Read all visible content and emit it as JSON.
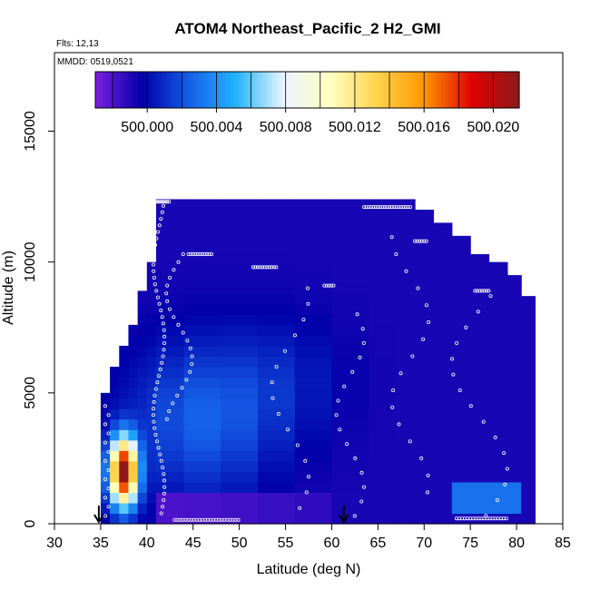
{
  "chart_data": {
    "type": "heatmap",
    "title": "ATOM4 Northeast_Pacific_2 H2_GMI",
    "annotations": [
      "Flts: 12,13",
      "MMDD: 0519,0521"
    ],
    "xlabel": "Latitude (deg N)",
    "ylabel": "Altitude (m)",
    "xlim": [
      30,
      85
    ],
    "ylim": [
      0,
      18000
    ],
    "xticks": [
      "30",
      "35",
      "40",
      "45",
      "50",
      "55",
      "60",
      "65",
      "70",
      "75",
      "80",
      "85"
    ],
    "yticks": [
      "0",
      "5000",
      "10000",
      "15000"
    ],
    "colorbar": {
      "ticks": [
        "500.000",
        "500.004",
        "500.008",
        "500.012",
        "500.016",
        "500.020"
      ],
      "tick_values": [
        500.0,
        500.004,
        500.008,
        500.012,
        500.016,
        500.02
      ],
      "range": [
        499.997,
        500.0215
      ],
      "colors": [
        "#7b1fe0",
        "#0000aa",
        "#1560e8",
        "#22b5ff",
        "#eaf4ff",
        "#ffffc0",
        "#ffd24a",
        "#ff9500",
        "#e00000",
        "#8b1a1a"
      ]
    },
    "columns": [
      {
        "lat": 35.0,
        "top": 5000
      },
      {
        "lat": 36.0,
        "top": 6000
      },
      {
        "lat": 37.0,
        "top": 6800
      },
      {
        "lat": 38.0,
        "top": 7600
      },
      {
        "lat": 39.0,
        "top": 8900
      },
      {
        "lat": 40.0,
        "top": 10000
      },
      {
        "lat": 41.0,
        "top": 12400
      },
      {
        "lat": 44.0,
        "top": 12400
      },
      {
        "lat": 48.0,
        "top": 12400
      },
      {
        "lat": 52.0,
        "top": 12400
      },
      {
        "lat": 56.0,
        "top": 12400
      },
      {
        "lat": 60.0,
        "top": 12400
      },
      {
        "lat": 64.0,
        "top": 12400
      },
      {
        "lat": 67.0,
        "top": 12400
      },
      {
        "lat": 69.0,
        "top": 12000
      },
      {
        "lat": 71.0,
        "top": 11500
      },
      {
        "lat": 73.0,
        "top": 11000
      },
      {
        "lat": 75.0,
        "top": 10300
      },
      {
        "lat": 77.0,
        "top": 10000
      },
      {
        "lat": 79.0,
        "top": 9500
      },
      {
        "lat": 80.5,
        "top": 8700
      },
      {
        "lat": 82.0,
        "top": 9400
      }
    ],
    "hotspot": {
      "lat": 37.5,
      "alt": 2000,
      "value": 500.021
    },
    "low_band": {
      "lat_from": 42,
      "lat_to": 61,
      "alt_from": 0,
      "alt_to": 1300,
      "value": 499.998
    },
    "markers": [
      {
        "lat": 34.8,
        "label": "down-arrow"
      },
      {
        "lat": 61.3,
        "label": "down-arrow"
      }
    ]
  }
}
